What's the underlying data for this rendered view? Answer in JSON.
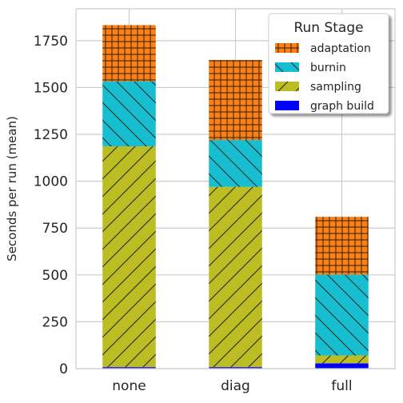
{
  "chart_data": {
    "type": "bar",
    "stacked": true,
    "title": "",
    "xlabel": "",
    "ylabel": "Seconds per run (mean)",
    "categories": [
      "none",
      "diag",
      "full"
    ],
    "ylim": [
      0,
      1920
    ],
    "yticks": [
      0,
      250,
      500,
      750,
      1000,
      1250,
      1500,
      1750
    ],
    "grid": true,
    "legend": {
      "title": "Run Stage",
      "placement": "top-right"
    },
    "series": [
      {
        "name": "graph build",
        "values": [
          8,
          8,
          28
        ],
        "color": "#0000ff",
        "hatch": "none"
      },
      {
        "name": "sampling",
        "values": [
          1178,
          962,
          42
        ],
        "color": "#bcbd22",
        "hatch": "diagonal"
      },
      {
        "name": "burnin",
        "values": [
          347,
          250,
          432
        ],
        "color": "#17becf",
        "hatch": "backslash"
      },
      {
        "name": "adaptation",
        "values": [
          300,
          427,
          308
        ],
        "color": "#ff7f0e",
        "hatch": "grid"
      }
    ]
  }
}
